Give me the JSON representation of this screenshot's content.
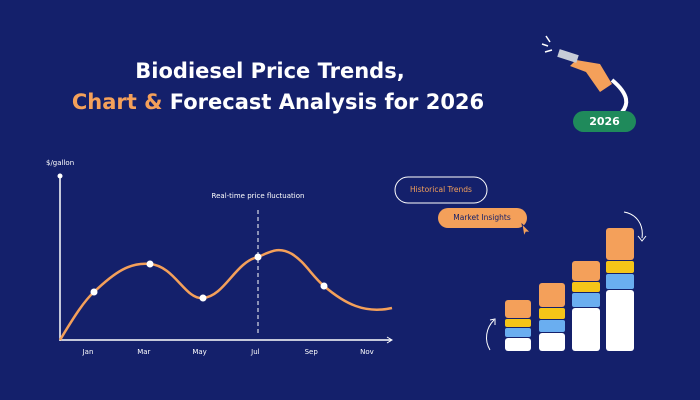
{
  "header": {
    "title_line1": "Biodiesel Price Trends,",
    "title_highlight": "Chart &",
    "title_rest": "Forecast Analysis for 2026"
  },
  "badge": "2026",
  "chart": {
    "y_label": "$/gallon",
    "annotation": "Real-time price fluctuation",
    "months": [
      "Jan",
      "Mar",
      "May",
      "Jul",
      "Sep",
      "Nov"
    ]
  },
  "buttons": [
    "Historical Trends",
    "Market Insights"
  ]
}
